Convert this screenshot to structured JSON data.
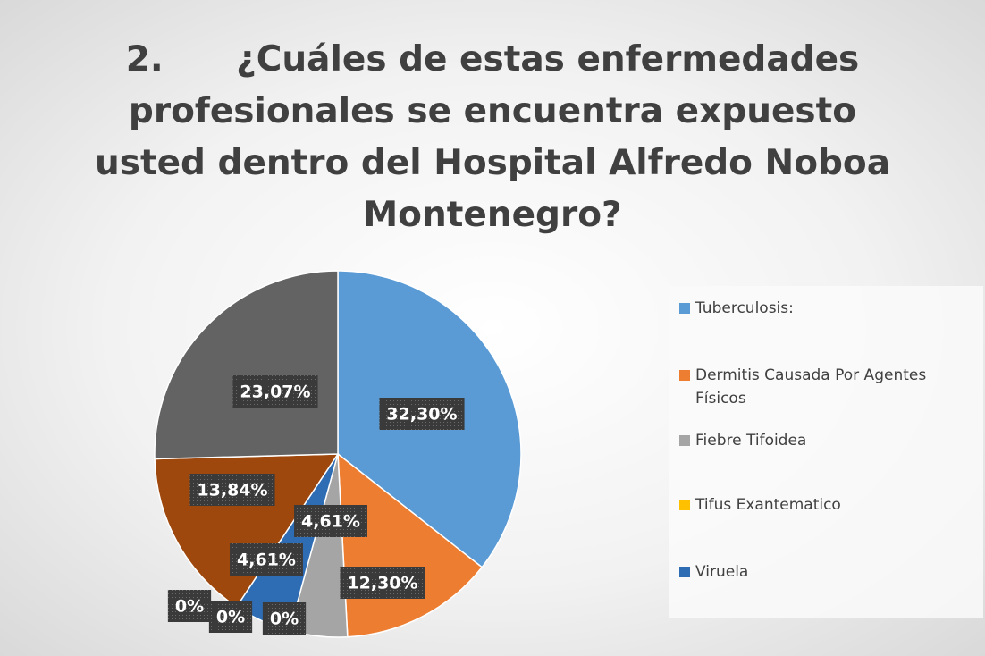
{
  "chart_data": {
    "type": "pie",
    "title": "2.      ¿Cuáles de estas enfermedades profesionales se encuentra expuesto usted dentro del Hospital Alfredo Noboa Montenegro?",
    "categories": [
      "Tuberculosis:",
      "Dermitis Causada Por Agentes Físicos",
      "Fiebre Tifoidea",
      "Tifus Exantematico",
      "Viruela",
      null,
      null,
      null,
      null
    ],
    "values": [
      32.3,
      12.3,
      4.61,
      0,
      4.61,
      0,
      0,
      13.84,
      23.07
    ],
    "value_labels": [
      "32,30%",
      "12,30%",
      "4,61%",
      "0%",
      "4,61%",
      "0%",
      "0%",
      "13,84%",
      "23,07%"
    ],
    "colors": [
      "#5b9bd5",
      "#ed7d31",
      "#a5a5a5",
      "#ffc000",
      "#2e6db4",
      "#70ad47",
      "#255e91",
      "#9e480e",
      "#636363"
    ],
    "legend": "right"
  }
}
